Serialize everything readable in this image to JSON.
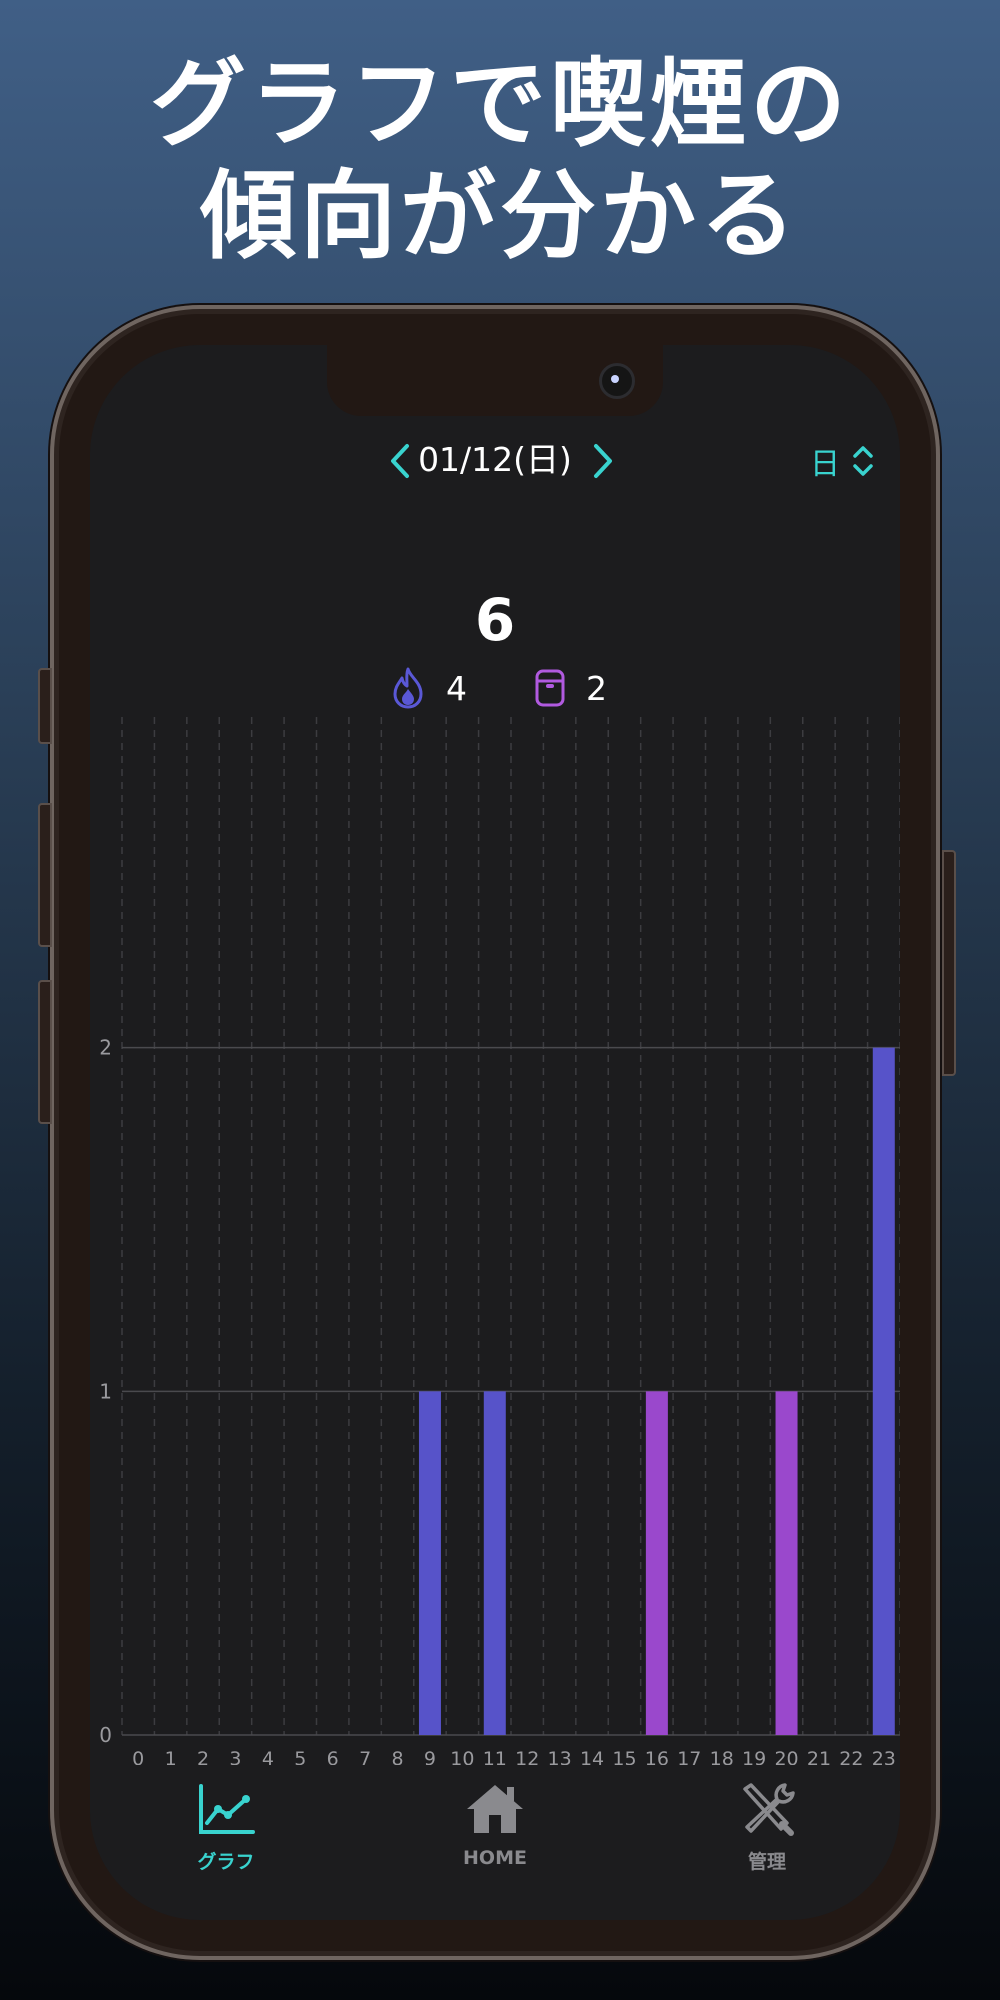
{
  "headline": {
    "line1": "グラフで喫煙の",
    "line2": "傾向が分かる"
  },
  "header": {
    "date_label": "01/12(日)",
    "period_label": "日",
    "prev_icon": "chevron-left-icon",
    "next_icon": "chevron-right-icon",
    "period_icon": "chevron-up-down-icon"
  },
  "summary": {
    "total": "6",
    "cigarette_count": "4",
    "heated_count": "2",
    "cigarette_icon": "flame-icon",
    "heated_icon": "heated-device-icon"
  },
  "colors": {
    "accent": "#39d3cf",
    "cigarette": "#5753c9",
    "heated": "#9a48cc",
    "background": "#1c1c1e"
  },
  "chart_data": {
    "type": "bar",
    "stacked": true,
    "categories": [
      "0",
      "1",
      "2",
      "3",
      "4",
      "5",
      "6",
      "7",
      "8",
      "9",
      "10",
      "11",
      "12",
      "13",
      "14",
      "15",
      "16",
      "17",
      "18",
      "19",
      "20",
      "21",
      "22",
      "23"
    ],
    "series": [
      {
        "values": [
          0,
          0,
          0,
          0,
          0,
          0,
          0,
          0,
          0,
          1,
          0,
          1,
          0,
          0,
          0,
          0,
          0,
          0,
          0,
          0,
          0,
          0,
          0,
          2
        ],
        "color": "#5753c9"
      },
      {
        "values": [
          0,
          0,
          0,
          0,
          0,
          0,
          0,
          0,
          0,
          0,
          0,
          0,
          0,
          0,
          0,
          0,
          1,
          0,
          0,
          0,
          1,
          0,
          0,
          0
        ],
        "color": "#9a48cc"
      }
    ],
    "yticks": [
      "0",
      "1",
      "2",
      "3"
    ],
    "ylim": [
      0,
      3
    ],
    "grid": true
  },
  "tabs": [
    {
      "label": "グラフ",
      "icon": "line-chart-icon",
      "active": true
    },
    {
      "label": "HOME",
      "icon": "house-icon",
      "active": false
    },
    {
      "label": "管理",
      "icon": "tools-icon",
      "active": false
    }
  ]
}
